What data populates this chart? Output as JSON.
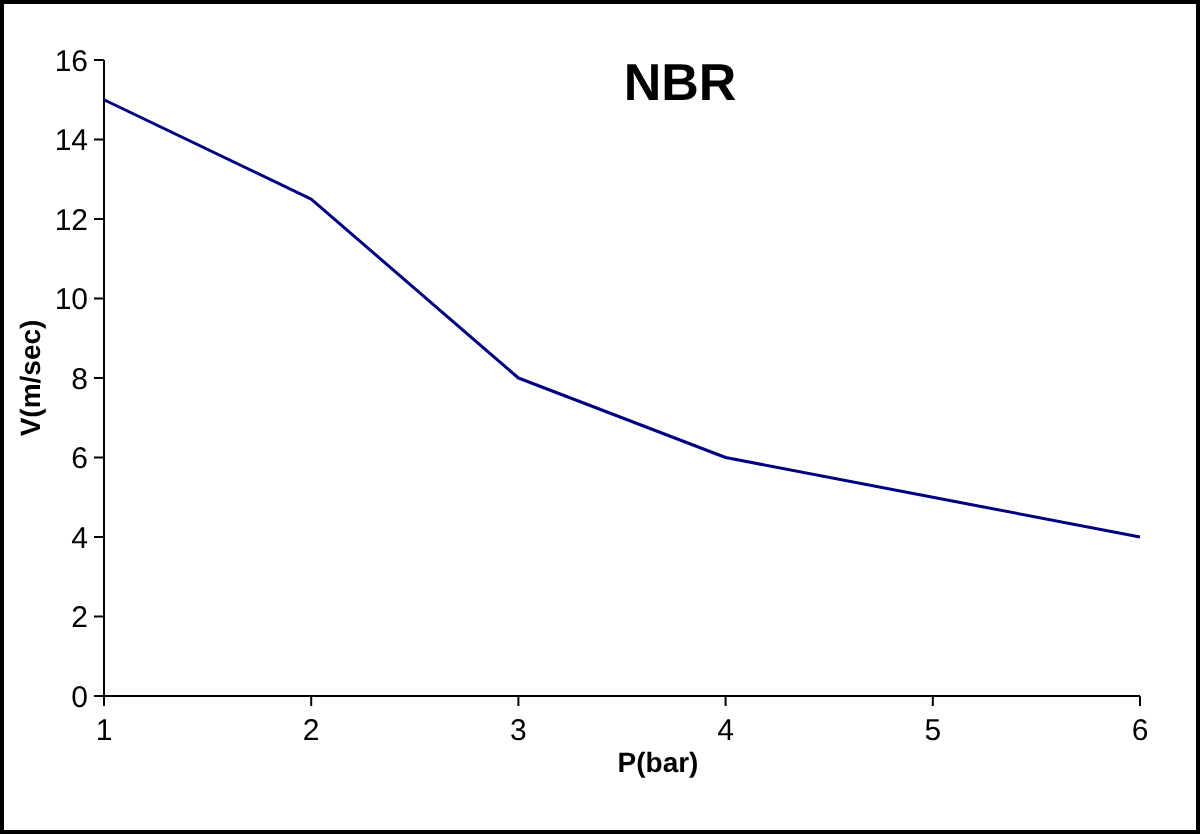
{
  "chart_data": {
    "type": "line",
    "title": "NBR",
    "xlabel": "P(bar)",
    "ylabel": "V(m/sec)",
    "x": [
      1,
      2,
      3,
      4,
      5,
      6
    ],
    "series": [
      {
        "color": "#000080",
        "values": [
          15,
          12.5,
          8,
          6,
          5,
          4
        ]
      }
    ],
    "xlim": [
      1,
      6
    ],
    "xticks": [
      1,
      2,
      3,
      4,
      5,
      6
    ],
    "ylim": [
      0,
      16
    ],
    "yticks": [
      0,
      2,
      4,
      6,
      8,
      10,
      12,
      14,
      16
    ],
    "marker": "none",
    "line_style": "solid"
  }
}
